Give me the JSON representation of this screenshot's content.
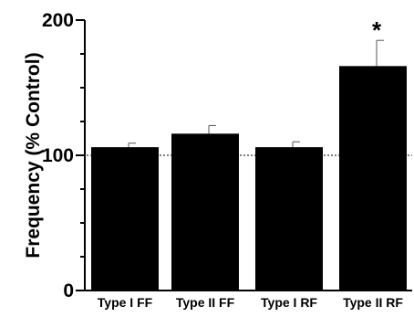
{
  "chart_data": {
    "type": "bar",
    "categories": [
      "Type I FF",
      "Type II FF",
      "Type I RF",
      "Type II RF"
    ],
    "values": [
      106,
      116,
      106,
      166
    ],
    "errors": [
      3,
      6,
      4,
      19
    ],
    "annotations": [
      "",
      "",
      "",
      "*"
    ],
    "title": "",
    "xlabel": "",
    "ylabel": "Frequency (% Control)",
    "ylim": [
      0,
      200
    ],
    "yticks": [
      0,
      100,
      200
    ],
    "reference_line": 100,
    "grid": false,
    "bar_color": "#000000"
  }
}
